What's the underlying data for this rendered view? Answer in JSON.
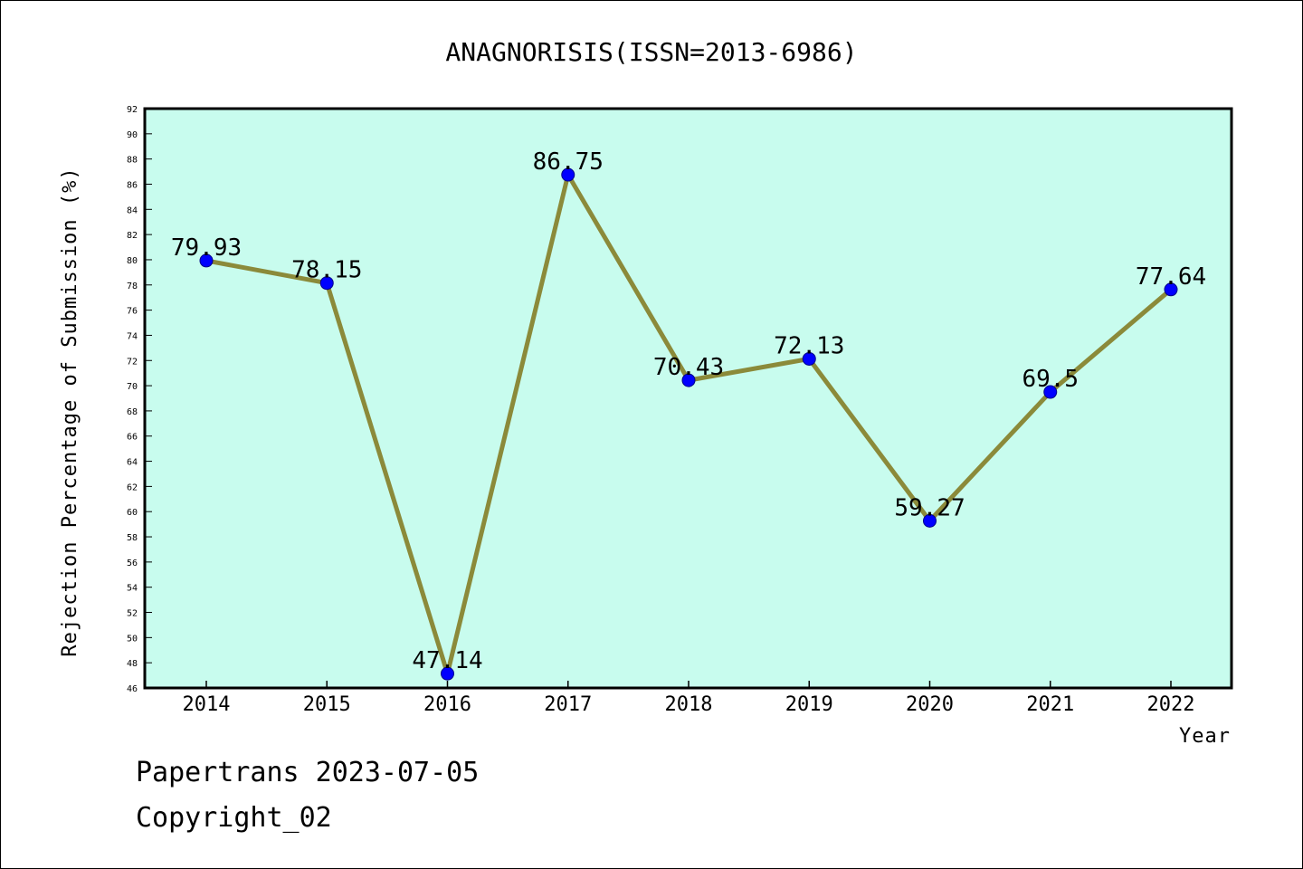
{
  "chart_data": {
    "type": "line",
    "title": "ANAGNORISIS(ISSN=2013-6986)",
    "xlabel": "Year",
    "ylabel": "Rejection Percentage of Submission (%)",
    "categories": [
      "2014",
      "2015",
      "2016",
      "2017",
      "2018",
      "2019",
      "2020",
      "2021",
      "2022"
    ],
    "values": [
      79.93,
      78.15,
      47.14,
      86.75,
      70.43,
      72.13,
      59.27,
      69.5,
      77.64
    ],
    "value_labels": [
      "79.93",
      "78.15",
      "47.14",
      "86.75",
      "70.43",
      "72.13",
      "59.27",
      "69.5",
      "77.64"
    ],
    "ylim": [
      46,
      92
    ],
    "yticks": [
      46,
      48,
      50,
      52,
      54,
      56,
      58,
      60,
      62,
      64,
      66,
      68,
      70,
      72,
      74,
      76,
      78,
      80,
      82,
      84,
      86,
      88,
      90,
      92
    ],
    "grid": false,
    "colors": {
      "plot_background": "#c8fcee",
      "line": "#8b8a3a",
      "marker": "#0000ff"
    }
  },
  "footer": {
    "line1": "Papertrans 2023-07-05",
    "line2": "Copyright_02"
  }
}
